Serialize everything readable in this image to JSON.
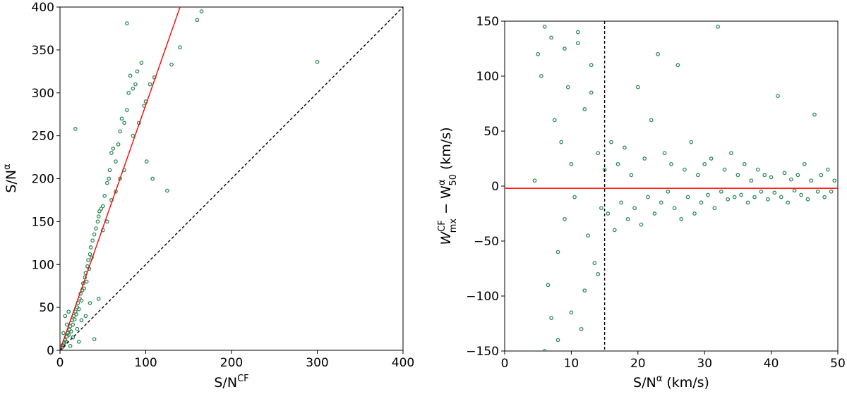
{
  "chart_data": [
    {
      "type": "scatter",
      "title": "",
      "xlabel": "S/N",
      "xlabel_sup": "CF",
      "ylabel": "S/N",
      "ylabel_sup": "α",
      "xlim": [
        0,
        400
      ],
      "ylim": [
        0,
        400
      ],
      "xticks": [
        "0",
        "100",
        "200",
        "300",
        "400"
      ],
      "yticks": [
        "0",
        "50",
        "100",
        "150",
        "200",
        "250",
        "300",
        "350",
        "400"
      ],
      "grid": false,
      "legend": "none",
      "marker_color": "#2e8b57",
      "series": [
        {
          "points": [
            [
              2,
              3
            ],
            [
              3,
              6
            ],
            [
              4,
              5
            ],
            [
              5,
              9
            ],
            [
              6,
              12
            ],
            [
              7,
              10
            ],
            [
              8,
              16
            ],
            [
              9,
              20
            ],
            [
              10,
              18
            ],
            [
              11,
              24
            ],
            [
              12,
              28
            ],
            [
              13,
              22
            ],
            [
              14,
              35
            ],
            [
              15,
              30
            ],
            [
              16,
              40
            ],
            [
              17,
              36
            ],
            [
              18,
              45
            ],
            [
              19,
              42
            ],
            [
              20,
              50
            ],
            [
              21,
              55
            ],
            [
              22,
              48
            ],
            [
              23,
              60
            ],
            [
              24,
              66
            ],
            [
              25,
              58
            ],
            [
              26,
              70
            ],
            [
              27,
              78
            ],
            [
              28,
              72
            ],
            [
              29,
              85
            ],
            [
              30,
              90
            ],
            [
              31,
              80
            ],
            [
              32,
              98
            ],
            [
              33,
              105
            ],
            [
              34,
              95
            ],
            [
              35,
              112
            ],
            [
              36,
              120
            ],
            [
              37,
              108
            ],
            [
              38,
              128
            ],
            [
              40,
              135
            ],
            [
              42,
              142
            ],
            [
              44,
              150
            ],
            [
              45,
              156
            ],
            [
              46,
              162
            ],
            [
              48,
              165
            ],
            [
              50,
              168
            ],
            [
              52,
              180
            ],
            [
              55,
              195
            ],
            [
              57,
              200
            ],
            [
              58,
              210
            ],
            [
              60,
              230
            ],
            [
              62,
              235
            ],
            [
              65,
              220
            ],
            [
              68,
              240
            ],
            [
              70,
              255
            ],
            [
              72,
              270
            ],
            [
              75,
              265
            ],
            [
              78,
              280
            ],
            [
              80,
              300
            ],
            [
              82,
              320
            ],
            [
              85,
              305
            ],
            [
              88,
              310
            ],
            [
              90,
              325
            ],
            [
              95,
              335
            ],
            [
              98,
              285
            ],
            [
              100,
              290
            ],
            [
              105,
              310
            ],
            [
              110,
              318
            ],
            [
              125,
              186
            ],
            [
              130,
              333
            ],
            [
              140,
              353
            ],
            [
              160,
              385
            ],
            [
              165,
              395
            ],
            [
              18,
              258
            ],
            [
              78,
              381
            ],
            [
              40,
              13
            ],
            [
              22,
              10
            ],
            [
              45,
              60
            ],
            [
              35,
              55
            ],
            [
              300,
              336
            ],
            [
              6,
              40
            ],
            [
              8,
              30
            ],
            [
              10,
              45
            ],
            [
              15,
              15
            ],
            [
              20,
              25
            ],
            [
              25,
              35
            ],
            [
              30,
              40
            ],
            [
              12,
              5
            ],
            [
              4,
              20
            ],
            [
              50,
              140
            ],
            [
              55,
              150
            ],
            [
              60,
              175
            ],
            [
              65,
              185
            ],
            [
              70,
              200
            ],
            [
              75,
              210
            ],
            [
              85,
              250
            ],
            [
              92,
              265
            ],
            [
              101,
              220
            ],
            [
              108,
              200
            ]
          ]
        }
      ],
      "lines": [
        {
          "name": "",
          "color": "#ff0000",
          "style": "solid",
          "from": [
            0,
            0
          ],
          "to": [
            140,
            400
          ]
        },
        {
          "name": "",
          "color": "#000000",
          "style": "dashed",
          "from": [
            0,
            0
          ],
          "to": [
            400,
            400
          ]
        }
      ]
    },
    {
      "type": "scatter",
      "title": "",
      "xlabel": "S/N",
      "xlabel_sup": "α",
      "xlabel_unit": " (km/s)",
      "ylabel_main": "W",
      "ylabel_sup1": "CF",
      "ylabel_sub1": "mx",
      "ylabel_minus": " − W",
      "ylabel_sup2": "α",
      "ylabel_sub2": "50",
      "ylabel_unit": " (km/s)",
      "xlim": [
        0,
        50
      ],
      "ylim": [
        -150,
        150
      ],
      "xticks": [
        "0",
        "10",
        "20",
        "30",
        "40",
        "50"
      ],
      "yticks": [
        "−150",
        "−100",
        "−50",
        "0",
        "50",
        "100",
        "150"
      ],
      "grid": false,
      "legend": "none",
      "marker_color": "#2e8b57",
      "series": [
        {
          "points": [
            [
              4.5,
              5
            ],
            [
              5,
              120
            ],
            [
              5.5,
              100
            ],
            [
              6,
              145
            ],
            [
              6.5,
              -90
            ],
            [
              7,
              -120
            ],
            [
              7.5,
              60
            ],
            [
              8,
              -60
            ],
            [
              8.5,
              40
            ],
            [
              9,
              -30
            ],
            [
              9.5,
              90
            ],
            [
              10,
              20
            ],
            [
              10.5,
              -10
            ],
            [
              11,
              130
            ],
            [
              11.5,
              -130
            ],
            [
              12,
              70
            ],
            [
              12.5,
              -45
            ],
            [
              13,
              110
            ],
            [
              13.5,
              -70
            ],
            [
              14,
              30
            ],
            [
              14.5,
              -20
            ],
            [
              15,
              15
            ],
            [
              15.5,
              -25
            ],
            [
              16,
              40
            ],
            [
              16.5,
              -40
            ],
            [
              17,
              20
            ],
            [
              17.5,
              -15
            ],
            [
              18,
              35
            ],
            [
              18.5,
              -30
            ],
            [
              19,
              10
            ],
            [
              19.5,
              -20
            ],
            [
              20,
              90
            ],
            [
              20.5,
              -35
            ],
            [
              21,
              25
            ],
            [
              21.5,
              -10
            ],
            [
              22,
              60
            ],
            [
              22.5,
              -25
            ],
            [
              23,
              120
            ],
            [
              23.5,
              -15
            ],
            [
              24,
              30
            ],
            [
              24.5,
              -5
            ],
            [
              25,
              20
            ],
            [
              25.5,
              -20
            ],
            [
              26,
              110
            ],
            [
              26.5,
              -30
            ],
            [
              27,
              15
            ],
            [
              27.5,
              -10
            ],
            [
              28,
              40
            ],
            [
              28.5,
              -25
            ],
            [
              29,
              10
            ],
            [
              29.5,
              -15
            ],
            [
              30,
              20
            ],
            [
              30.5,
              -8
            ],
            [
              31,
              25
            ],
            [
              31.5,
              -20
            ],
            [
              32,
              145
            ],
            [
              32.5,
              -5
            ],
            [
              33,
              15
            ],
            [
              33.5,
              -12
            ],
            [
              34,
              30
            ],
            [
              34.5,
              -10
            ],
            [
              35,
              10
            ],
            [
              35.5,
              -8
            ],
            [
              36,
              20
            ],
            [
              36.5,
              -15
            ],
            [
              37,
              5
            ],
            [
              37.5,
              -10
            ],
            [
              38,
              15
            ],
            [
              38.5,
              -5
            ],
            [
              39,
              10
            ],
            [
              39.5,
              -12
            ],
            [
              40,
              8
            ],
            [
              40.5,
              -6
            ],
            [
              41,
              82
            ],
            [
              41.5,
              -10
            ],
            [
              42,
              12
            ],
            [
              42.5,
              -15
            ],
            [
              43,
              6
            ],
            [
              43.5,
              -4
            ],
            [
              44,
              10
            ],
            [
              44.5,
              -8
            ],
            [
              45,
              20
            ],
            [
              45.5,
              -12
            ],
            [
              46,
              5
            ],
            [
              46.5,
              65
            ],
            [
              47,
              -5
            ],
            [
              47.5,
              10
            ],
            [
              48,
              -10
            ],
            [
              48.5,
              15
            ],
            [
              49,
              -5
            ],
            [
              49.5,
              5
            ],
            [
              8,
              -140
            ],
            [
              10,
              -115
            ],
            [
              12,
              -95
            ],
            [
              9,
              125
            ],
            [
              11,
              140
            ],
            [
              13,
              85
            ],
            [
              14,
              -80
            ],
            [
              6,
              -150
            ],
            [
              7,
              135
            ]
          ]
        }
      ],
      "lines": [
        {
          "name": "",
          "color": "#ff0000",
          "style": "solid",
          "y": -2
        },
        {
          "name": "",
          "color": "#000000",
          "style": "dashed",
          "x": 15
        }
      ]
    }
  ]
}
